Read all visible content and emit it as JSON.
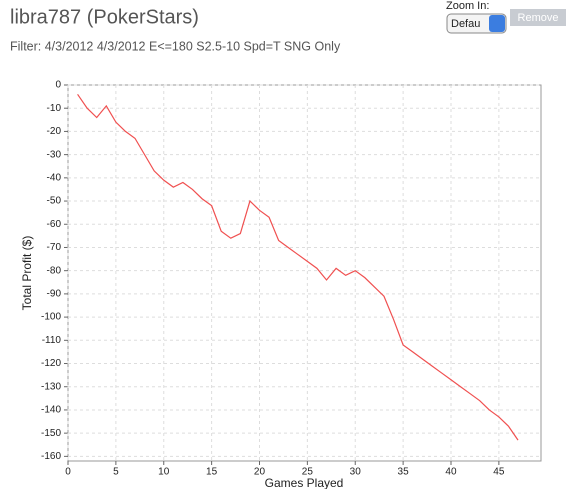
{
  "chart_data": {
    "type": "line",
    "title": "libra787 (PokerStars)",
    "subtitle": "Filter: 4/3/2012 4/3/2012 E<=180 S2.5-10 Spd=T SNG Only",
    "xlabel": "Games Played",
    "ylabel": "Total Profit ($)",
    "x": [
      1,
      2,
      3,
      4,
      5,
      6,
      7,
      8,
      9,
      10,
      11,
      12,
      13,
      14,
      15,
      16,
      17,
      18,
      19,
      20,
      21,
      22,
      23,
      24,
      25,
      26,
      27,
      28,
      29,
      30,
      31,
      32,
      33,
      34,
      35,
      36,
      37,
      38,
      39,
      40,
      41,
      42,
      43,
      44,
      45,
      46,
      47
    ],
    "values": [
      -4,
      -10,
      -14,
      -9,
      -16,
      -20,
      -23,
      -30,
      -37,
      -41,
      -44,
      -42,
      -45,
      -49,
      -52,
      -63,
      -66,
      -64,
      -50,
      -54,
      -57,
      -67,
      -70,
      -73,
      -76,
      -79,
      -84,
      -79,
      -82,
      -80,
      -83,
      -87,
      -91,
      -101,
      -112,
      -115,
      -118,
      -121,
      -124,
      -127,
      -130,
      -133,
      -136,
      -140,
      -143,
      -147,
      -153
    ],
    "color": "#f05050",
    "xlim": [
      0,
      49.4
    ],
    "xticks": [
      0,
      5,
      10,
      15,
      20,
      25,
      30,
      35,
      40,
      45
    ],
    "ylim": [
      -162,
      0
    ],
    "yticks": [
      0,
      -10,
      -20,
      -30,
      -40,
      -50,
      -60,
      -70,
      -80,
      -90,
      -100,
      -110,
      -120,
      -130,
      -140,
      -150,
      -160
    ],
    "grid": true
  },
  "controls": {
    "zoom_label": "Zoom In:",
    "zoom_value": "Defau",
    "button": "Remove"
  }
}
